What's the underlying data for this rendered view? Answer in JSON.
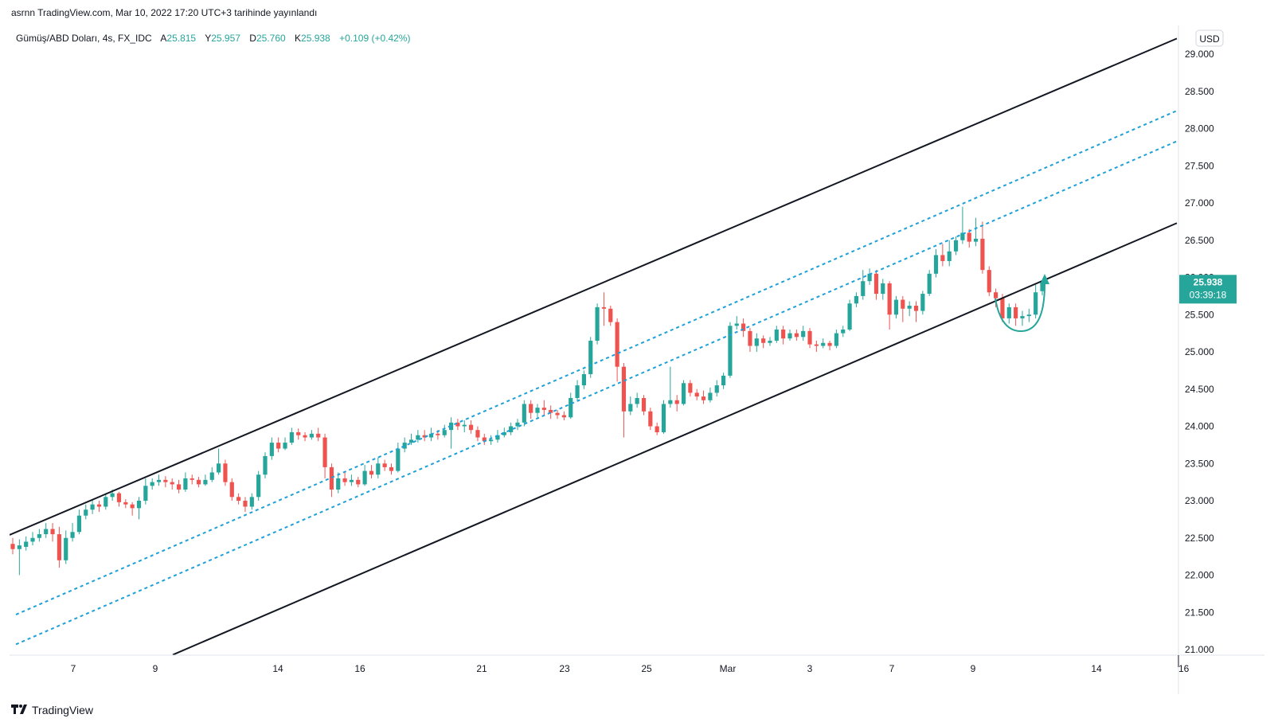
{
  "header": {
    "published_text": "asrnn TradingView.com, Mar 10, 2022 17:20 UTC+3 tarihinde yayınlandı"
  },
  "legend": {
    "symbol": "Gümüş/ABD Doları, 4s, FX_IDC",
    "open_label": "A",
    "open": "25.815",
    "high_label": "Y",
    "high": "25.957",
    "low_label": "D",
    "low": "25.760",
    "close_label": "K",
    "close": "25.938",
    "change": "+0.109 (+0.42%)"
  },
  "price_axis": {
    "currency": "USD",
    "ticks": [
      "29.000",
      "28.500",
      "28.000",
      "27.500",
      "27.000",
      "26.500",
      "26.000",
      "25.500",
      "25.000",
      "24.500",
      "24.000",
      "23.500",
      "23.000",
      "22.500",
      "22.000",
      "21.500",
      "21.000"
    ],
    "last_price": "25.938",
    "countdown": "03:39:18"
  },
  "time_axis": {
    "labels": [
      "7",
      "9",
      "14",
      "16",
      "21",
      "23",
      "25",
      "Mar",
      "3",
      "7",
      "9",
      "14",
      "16"
    ]
  },
  "footer": {
    "brand": "TradingView"
  },
  "colors": {
    "up": "#26a69a",
    "down": "#ef5350",
    "channel": "#131722",
    "inner_channel": "#1ea0d8",
    "badge": "#26a69a"
  },
  "chart_data": {
    "type": "candlestick",
    "ylim": [
      20.95,
      29.3
    ],
    "x_labels": [
      "7",
      "9",
      "14",
      "16",
      "21",
      "23",
      "25",
      "Mar",
      "3",
      "7",
      "9",
      "14",
      "16"
    ],
    "candles": [
      [
        22.42,
        22.35,
        22.5,
        22.28
      ],
      [
        22.35,
        22.4,
        22.48,
        22.0
      ],
      [
        22.38,
        22.45,
        22.52,
        22.33
      ],
      [
        22.45,
        22.5,
        22.58,
        22.4
      ],
      [
        22.5,
        22.55,
        22.62,
        22.45
      ],
      [
        22.55,
        22.62,
        22.7,
        22.5
      ],
      [
        22.62,
        22.55,
        22.7,
        22.45
      ],
      [
        22.55,
        22.2,
        22.65,
        22.1
      ],
      [
        22.2,
        22.5,
        22.6,
        22.15
      ],
      [
        22.5,
        22.58,
        22.7,
        22.45
      ],
      [
        22.58,
        22.8,
        22.88,
        22.55
      ],
      [
        22.8,
        22.88,
        22.95,
        22.75
      ],
      [
        22.88,
        22.95,
        23.02,
        22.82
      ],
      [
        22.95,
        22.92,
        23.0,
        22.85
      ],
      [
        22.92,
        23.05,
        23.1,
        22.88
      ],
      [
        23.05,
        23.1,
        23.15,
        23.0
      ],
      [
        23.1,
        22.98,
        23.12,
        22.92
      ],
      [
        22.98,
        22.95,
        23.02,
        22.9
      ],
      [
        22.95,
        22.9,
        22.98,
        22.8
      ],
      [
        22.9,
        23.0,
        23.05,
        22.75
      ],
      [
        23.0,
        23.2,
        23.3,
        22.95
      ],
      [
        23.2,
        23.25,
        23.3,
        23.15
      ],
      [
        23.25,
        23.28,
        23.35,
        23.2
      ],
      [
        23.28,
        23.25,
        23.33,
        23.18
      ],
      [
        23.25,
        23.22,
        23.3,
        23.15
      ],
      [
        23.22,
        23.15,
        23.28,
        23.1
      ],
      [
        23.15,
        23.3,
        23.38,
        23.12
      ],
      [
        23.3,
        23.28,
        23.35,
        23.22
      ],
      [
        23.28,
        23.22,
        23.32,
        23.18
      ],
      [
        23.22,
        23.28,
        23.35,
        23.2
      ],
      [
        23.28,
        23.38,
        23.45,
        23.25
      ],
      [
        23.38,
        23.5,
        23.7,
        23.35
      ],
      [
        23.5,
        23.25,
        23.55,
        23.2
      ],
      [
        23.25,
        23.05,
        23.3,
        23.0
      ],
      [
        23.05,
        23.0,
        23.1,
        22.95
      ],
      [
        23.0,
        22.92,
        23.05,
        22.85
      ],
      [
        22.92,
        23.05,
        23.1,
        22.88
      ],
      [
        23.05,
        23.35,
        23.4,
        23.0
      ],
      [
        23.35,
        23.6,
        23.65,
        23.3
      ],
      [
        23.6,
        23.78,
        23.85,
        23.55
      ],
      [
        23.78,
        23.7,
        23.85,
        23.65
      ],
      [
        23.7,
        23.78,
        23.85,
        23.68
      ],
      [
        23.78,
        23.92,
        23.98,
        23.75
      ],
      [
        23.92,
        23.88,
        23.97,
        23.82
      ],
      [
        23.88,
        23.85,
        23.92,
        23.8
      ],
      [
        23.85,
        23.9,
        23.95,
        23.82
      ],
      [
        23.9,
        23.85,
        23.98,
        23.8
      ],
      [
        23.85,
        23.45,
        23.9,
        23.3
      ],
      [
        23.45,
        23.15,
        23.5,
        23.05
      ],
      [
        23.15,
        23.3,
        23.38,
        23.1
      ],
      [
        23.3,
        23.25,
        23.38,
        23.2
      ],
      [
        23.25,
        23.28,
        23.35,
        23.2
      ],
      [
        23.28,
        23.22,
        23.32,
        23.18
      ],
      [
        23.22,
        23.4,
        23.48,
        23.2
      ],
      [
        23.4,
        23.35,
        23.48,
        23.3
      ],
      [
        23.35,
        23.5,
        23.58,
        23.3
      ],
      [
        23.5,
        23.45,
        23.55,
        23.4
      ],
      [
        23.45,
        23.4,
        23.5,
        23.35
      ],
      [
        23.4,
        23.7,
        23.78,
        23.38
      ],
      [
        23.7,
        23.78,
        23.85,
        23.65
      ],
      [
        23.78,
        23.82,
        23.9,
        23.75
      ],
      [
        23.82,
        23.88,
        23.95,
        23.78
      ],
      [
        23.88,
        23.85,
        23.95,
        23.8
      ],
      [
        23.85,
        23.9,
        23.98,
        23.8
      ],
      [
        23.9,
        23.88,
        23.95,
        23.82
      ],
      [
        23.88,
        23.95,
        24.02,
        23.85
      ],
      [
        23.95,
        24.05,
        24.12,
        23.7
      ],
      [
        24.05,
        24.0,
        24.1,
        23.95
      ],
      [
        24.0,
        24.02,
        24.08,
        23.92
      ],
      [
        24.02,
        23.95,
        24.08,
        23.9
      ],
      [
        23.95,
        23.85,
        24.0,
        23.8
      ],
      [
        23.85,
        23.8,
        23.9,
        23.75
      ],
      [
        23.8,
        23.82,
        23.88,
        23.75
      ],
      [
        23.82,
        23.88,
        23.95,
        23.78
      ],
      [
        23.88,
        23.92,
        23.98,
        23.85
      ],
      [
        23.92,
        24.0,
        24.05,
        23.88
      ],
      [
        24.0,
        24.05,
        24.1,
        23.95
      ],
      [
        24.05,
        24.3,
        24.35,
        24.0
      ],
      [
        24.3,
        24.18,
        24.35,
        24.1
      ],
      [
        24.18,
        24.25,
        24.3,
        24.12
      ],
      [
        24.25,
        24.22,
        24.35,
        24.15
      ],
      [
        24.22,
        24.18,
        24.28,
        24.1
      ],
      [
        24.18,
        24.15,
        24.22,
        24.1
      ],
      [
        24.15,
        24.12,
        24.2,
        24.08
      ],
      [
        24.12,
        24.38,
        24.45,
        24.1
      ],
      [
        24.38,
        24.55,
        24.62,
        24.35
      ],
      [
        24.55,
        24.7,
        24.75,
        24.5
      ],
      [
        24.7,
        25.15,
        25.2,
        24.65
      ],
      [
        25.15,
        25.6,
        25.65,
        25.1
      ],
      [
        25.6,
        25.58,
        25.8,
        25.35
      ],
      [
        25.58,
        25.4,
        25.62,
        25.35
      ],
      [
        25.4,
        24.8,
        25.45,
        24.6
      ],
      [
        24.8,
        24.2,
        24.85,
        23.85
      ],
      [
        24.2,
        24.3,
        24.4,
        24.15
      ],
      [
        24.3,
        24.38,
        24.45,
        24.25
      ],
      [
        24.38,
        24.2,
        24.42,
        24.15
      ],
      [
        24.2,
        24.0,
        24.25,
        23.95
      ],
      [
        24.0,
        23.92,
        24.05,
        23.88
      ],
      [
        23.92,
        24.3,
        24.35,
        23.9
      ],
      [
        24.3,
        24.35,
        24.8,
        24.25
      ],
      [
        24.35,
        24.3,
        24.42,
        24.2
      ],
      [
        24.3,
        24.58,
        24.62,
        24.28
      ],
      [
        24.58,
        24.45,
        24.62,
        24.4
      ],
      [
        24.45,
        24.4,
        24.5,
        24.35
      ],
      [
        24.4,
        24.35,
        24.48,
        24.3
      ],
      [
        24.35,
        24.45,
        24.52,
        24.32
      ],
      [
        24.45,
        24.55,
        24.62,
        24.4
      ],
      [
        24.55,
        24.68,
        24.72,
        24.5
      ],
      [
        24.68,
        25.35,
        25.4,
        24.65
      ],
      [
        25.35,
        25.38,
        25.48,
        25.3
      ],
      [
        25.38,
        25.28,
        25.45,
        25.2
      ],
      [
        25.28,
        25.08,
        25.32,
        25.0
      ],
      [
        25.08,
        25.18,
        25.25,
        25.0
      ],
      [
        25.18,
        25.12,
        25.22,
        25.05
      ],
      [
        25.12,
        25.15,
        25.2,
        25.08
      ],
      [
        25.15,
        25.3,
        25.35,
        25.12
      ],
      [
        25.3,
        25.18,
        25.35,
        25.1
      ],
      [
        25.18,
        25.25,
        25.3,
        25.15
      ],
      [
        25.25,
        25.2,
        25.3,
        25.15
      ],
      [
        25.2,
        25.28,
        25.35,
        25.15
      ],
      [
        25.28,
        25.1,
        25.32,
        25.05
      ],
      [
        25.1,
        25.08,
        25.15,
        25.0
      ],
      [
        25.08,
        25.12,
        25.18,
        25.05
      ],
      [
        25.12,
        25.08,
        25.15,
        25.02
      ],
      [
        25.08,
        25.25,
        25.3,
        25.05
      ],
      [
        25.25,
        25.3,
        25.35,
        25.2
      ],
      [
        25.3,
        25.65,
        25.7,
        25.28
      ],
      [
        25.65,
        25.75,
        25.8,
        25.6
      ],
      [
        25.75,
        25.95,
        26.1,
        25.7
      ],
      [
        25.95,
        26.05,
        26.12,
        25.9
      ],
      [
        26.05,
        25.78,
        26.1,
        25.7
      ],
      [
        25.78,
        25.92,
        25.98,
        25.7
      ],
      [
        25.92,
        25.5,
        25.95,
        25.3
      ],
      [
        25.5,
        25.7,
        25.75,
        25.45
      ],
      [
        25.7,
        25.58,
        25.75,
        25.4
      ],
      [
        25.58,
        25.62,
        25.68,
        25.48
      ],
      [
        25.62,
        25.55,
        25.68,
        25.4
      ],
      [
        25.55,
        25.78,
        25.82,
        25.5
      ],
      [
        25.78,
        26.05,
        26.1,
        25.75
      ],
      [
        26.05,
        26.3,
        26.38,
        26.0
      ],
      [
        26.3,
        26.22,
        26.45,
        26.15
      ],
      [
        26.22,
        26.35,
        26.5,
        26.15
      ],
      [
        26.35,
        26.5,
        26.55,
        26.3
      ],
      [
        26.5,
        26.6,
        26.95,
        26.45
      ],
      [
        26.6,
        26.48,
        26.65,
        26.4
      ],
      [
        26.48,
        26.52,
        26.8,
        26.42
      ],
      [
        26.52,
        26.1,
        26.75,
        26.05
      ],
      [
        26.1,
        25.8,
        26.15,
        25.75
      ],
      [
        25.8,
        25.72,
        25.85,
        25.6
      ],
      [
        25.72,
        25.45,
        25.78,
        25.4
      ],
      [
        25.45,
        25.6,
        25.65,
        25.38
      ],
      [
        25.6,
        25.45,
        25.65,
        25.35
      ],
      [
        25.45,
        25.48,
        25.55,
        25.35
      ],
      [
        25.48,
        25.5,
        25.58,
        25.4
      ],
      [
        25.5,
        25.8,
        25.9,
        25.45
      ],
      [
        25.815,
        25.938,
        25.957,
        25.76
      ]
    ],
    "trend_lines": [
      {
        "style": "solid",
        "points": [
          [
            0,
            22.54
          ],
          [
            1466,
            29.21
          ]
        ]
      },
      {
        "style": "solid",
        "points": [
          [
            205,
            20.93
          ],
          [
            1466,
            26.73
          ]
        ]
      },
      {
        "style": "dashed",
        "points": [
          [
            8,
            21.47
          ],
          [
            1466,
            28.24
          ]
        ]
      },
      {
        "style": "dashed",
        "points": [
          [
            8,
            21.07
          ],
          [
            1466,
            27.83
          ]
        ]
      }
    ]
  }
}
